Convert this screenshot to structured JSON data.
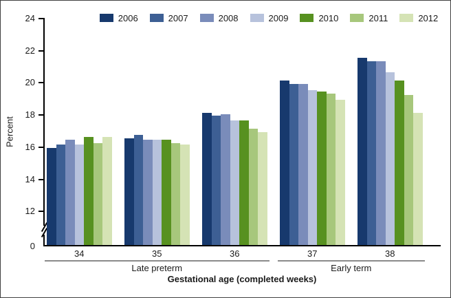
{
  "figure_border_color": "#3f3f3f",
  "axis_color": "#000000",
  "bracket_line_color": "#8a8a8a",
  "chart_data": {
    "type": "bar",
    "title": "",
    "ylabel": "Percent",
    "xlabel": "Gestational age (completed weeks)",
    "legend_position": "top",
    "grid": false,
    "categories": [
      "34",
      "35",
      "36",
      "37",
      "38"
    ],
    "category_groups": [
      {
        "label": "Late preterm",
        "from_category": "34",
        "to_category": "36"
      },
      {
        "label": "Early term",
        "from_category": "37",
        "to_category": "38"
      }
    ],
    "series": [
      {
        "name": "2006",
        "color": "#17396d",
        "values": [
          15.9,
          16.5,
          18.1,
          20.1,
          21.5
        ]
      },
      {
        "name": "2007",
        "color": "#3d5f94",
        "values": [
          16.1,
          16.7,
          17.9,
          19.9,
          21.3
        ]
      },
      {
        "name": "2008",
        "color": "#7a8cba",
        "values": [
          16.4,
          16.4,
          18.0,
          19.9,
          21.3
        ]
      },
      {
        "name": "2009",
        "color": "#b7c2dc",
        "values": [
          16.1,
          16.4,
          17.6,
          19.5,
          20.6
        ]
      },
      {
        "name": "2010",
        "color": "#579120",
        "values": [
          16.6,
          16.4,
          17.6,
          19.4,
          20.1
        ]
      },
      {
        "name": "2011",
        "color": "#a7c77c",
        "values": [
          16.2,
          16.2,
          17.1,
          19.3,
          19.2
        ]
      },
      {
        "name": "2012",
        "color": "#d5e3b5",
        "values": [
          16.6,
          16.1,
          16.9,
          18.9,
          18.1
        ]
      }
    ],
    "y_ticks": [
      24,
      22,
      20,
      18,
      16,
      14,
      12
    ],
    "y_baseline_tick": 0,
    "axis_break": true,
    "ylim_display": [
      12,
      24
    ]
  }
}
